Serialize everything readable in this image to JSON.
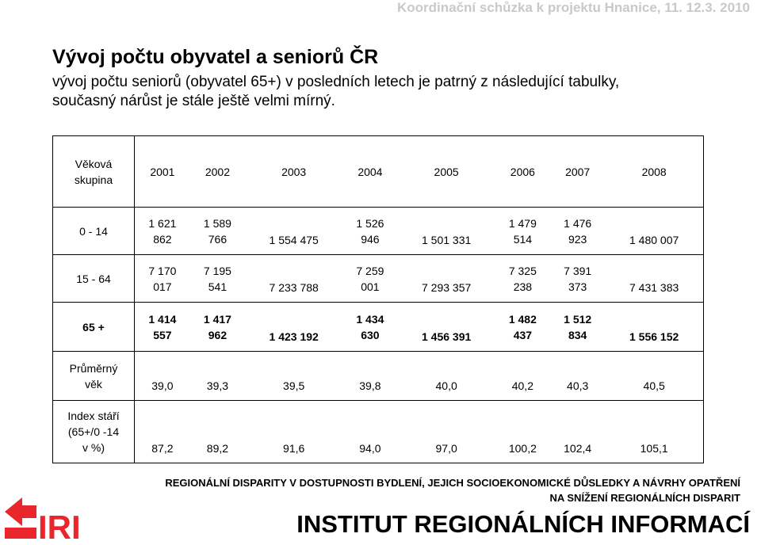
{
  "header": {
    "meeting": "Koordinační schůzka k projektu Hnanice, 11. 12.3. 2010"
  },
  "heading": {
    "title": "Vývoj počtu obyvatel a seniorů ČR",
    "subtitle": "vývoj počtu seniorů (obyvatel 65+) v posledních letech je patrný z následující tabulky, současný nárůst je stále ještě velmi mírný."
  },
  "table": {
    "header_label": [
      "Věková",
      "skupina"
    ],
    "years": [
      "2001",
      "2002",
      "2003",
      "2004",
      "2005",
      "2006",
      "2007",
      "2008"
    ],
    "rows": [
      {
        "label": [
          "0 - 14"
        ],
        "cells": [
          [
            "1 621",
            "862"
          ],
          [
            "1 589",
            "766"
          ],
          [
            "1 554 475"
          ],
          [
            "1 526",
            "946"
          ],
          [
            "1 501 331"
          ],
          [
            "1 479",
            "514"
          ],
          [
            "1 476",
            "923"
          ],
          [
            "1 480 007"
          ]
        ]
      },
      {
        "label": [
          "15 - 64"
        ],
        "cells": [
          [
            "7 170",
            "017"
          ],
          [
            "7 195",
            "541"
          ],
          [
            "7 233 788"
          ],
          [
            "7 259",
            "001"
          ],
          [
            "7 293 357"
          ],
          [
            "7 325",
            "238"
          ],
          [
            "7 391",
            "373"
          ],
          [
            "7 431 383"
          ]
        ]
      },
      {
        "label": [
          "65 +"
        ],
        "cells": [
          [
            "1 414",
            "557"
          ],
          [
            "1 417",
            "962"
          ],
          [
            "1 423 192"
          ],
          [
            "1 434",
            "630"
          ],
          [
            "1 456 391"
          ],
          [
            "1 482",
            "437"
          ],
          [
            "1 512",
            "834"
          ],
          [
            "1 556 152"
          ]
        ]
      },
      {
        "label": [
          "Průměrný",
          "věk"
        ],
        "cells": [
          [
            "39,0"
          ],
          [
            "39,3"
          ],
          [
            "39,5"
          ],
          [
            "39,8"
          ],
          [
            "40,0"
          ],
          [
            "40,2"
          ],
          [
            "40,3"
          ],
          [
            "40,5"
          ]
        ]
      },
      {
        "label": [
          "Index stáří",
          "(65+/0 -14",
          "v %)"
        ],
        "cells": [
          [
            "87,2"
          ],
          [
            "89,2"
          ],
          [
            "91,6"
          ],
          [
            "94,0"
          ],
          [
            "97,0"
          ],
          [
            "100,2"
          ],
          [
            "102,4"
          ],
          [
            "105,1"
          ]
        ]
      }
    ]
  },
  "footer": {
    "disparity_line1": "REGIONÁLNÍ DISPARITY V DOSTUPNOSTI BYDLENÍ, JEJICH SOCIOEKONOMICKÉ DŮSLEDKY A NÁVRHY OPATŘENÍ",
    "disparity_line2": "NA SNÍŽENÍ REGIONÁLNÍCH DISPARIT",
    "logo_text": "IRI",
    "institute": "INSTITUT REGIONÁLNÍCH INFORMACÍ"
  },
  "colors": {
    "logo_red": "#e8262b",
    "header_gray": "#c9c9c9"
  }
}
